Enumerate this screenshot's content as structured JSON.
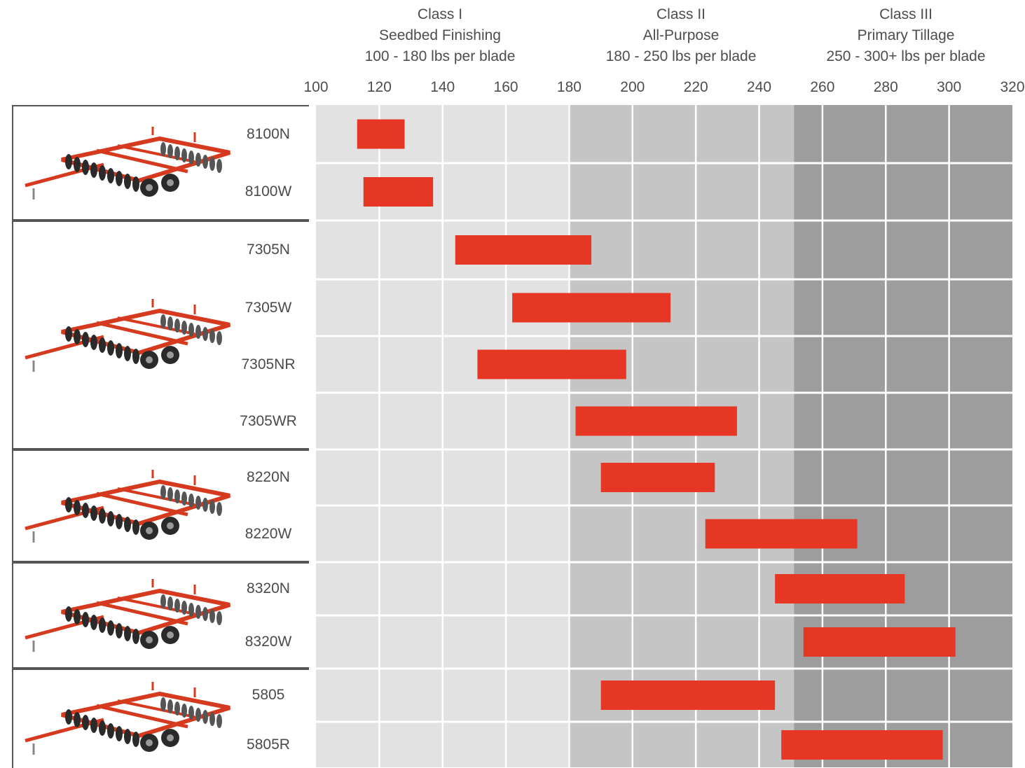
{
  "chart_data": {
    "type": "bar",
    "orientation": "horizontal-range",
    "x_ticks": [
      100,
      120,
      140,
      160,
      180,
      200,
      220,
      240,
      260,
      280,
      300,
      320
    ],
    "xlim": [
      100,
      320
    ],
    "grid": true,
    "classes": [
      {
        "lines": [
          "Class I",
          "Seedbed Finishing",
          "100 - 180 lbs per blade"
        ],
        "range": [
          100,
          180
        ],
        "color": "#e2e2e2"
      },
      {
        "lines": [
          "Class II",
          "All-Purpose",
          "180 - 250 lbs per blade"
        ],
        "range": [
          180,
          251
        ],
        "color": "#c5c5c5"
      },
      {
        "lines": [
          "Class III",
          "Primary Tillage",
          "250 - 300+ lbs per blade"
        ],
        "range": [
          251,
          320
        ],
        "color": "#9d9d9d"
      }
    ],
    "bar_color": "#e63724",
    "groups": [
      {
        "thumbnail": "disk-harrow-8100-image",
        "models": [
          {
            "name": "8100N",
            "min": 113,
            "max": 128
          },
          {
            "name": "8100W",
            "min": 115,
            "max": 137
          }
        ]
      },
      {
        "thumbnail": "disk-harrow-7305-image",
        "models": [
          {
            "name": "7305N",
            "min": 144,
            "max": 187
          },
          {
            "name": "7305W",
            "min": 162,
            "max": 212
          },
          {
            "name": "7305NR",
            "min": 151,
            "max": 198
          },
          {
            "name": "7305WR",
            "min": 182,
            "max": 233
          }
        ]
      },
      {
        "thumbnail": "disk-harrow-8220-image",
        "models": [
          {
            "name": "8220N",
            "min": 190,
            "max": 226
          },
          {
            "name": "8220W",
            "min": 223,
            "max": 271
          }
        ]
      },
      {
        "thumbnail": "disk-harrow-8320-image",
        "models": [
          {
            "name": "8320N",
            "min": 245,
            "max": 286
          },
          {
            "name": "8320W",
            "min": 254,
            "max": 302
          }
        ]
      },
      {
        "thumbnail": "disk-harrow-5805-image",
        "models": [
          {
            "name": "5805",
            "min": 190,
            "max": 245
          },
          {
            "name": "5805R",
            "min": 247,
            "max": 298
          }
        ]
      }
    ]
  }
}
